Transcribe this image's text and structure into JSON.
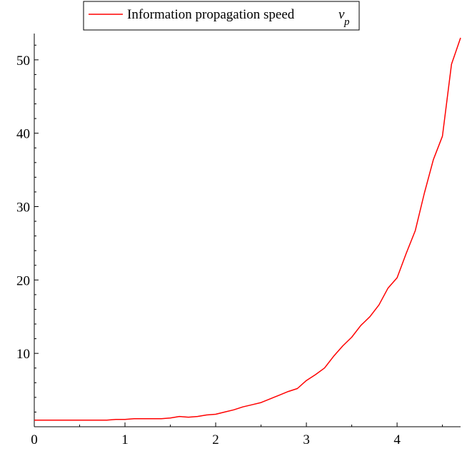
{
  "chart_data": {
    "type": "line",
    "title": "",
    "xlabel": "",
    "ylabel": "",
    "xlim": [
      0,
      4.7
    ],
    "ylim": [
      0,
      53
    ],
    "x_ticks": [
      0,
      1,
      2,
      3,
      4
    ],
    "y_ticks": [
      10,
      20,
      30,
      40,
      50
    ],
    "x_tick_labels": [
      "0",
      "1",
      "2",
      "3",
      "4"
    ],
    "y_tick_labels": [
      "10",
      "20",
      "30",
      "40",
      "50"
    ],
    "grid": false,
    "legend": {
      "placement": "top",
      "entries": [
        {
          "text": "Information propagation speed",
          "symbol": "v",
          "subscript": "p"
        }
      ]
    },
    "series": [
      {
        "name": "Information propagation speed v_p",
        "color": "#ff0000",
        "x": [
          0,
          0.2,
          0.4,
          0.6,
          0.8,
          0.9,
          1.0,
          1.1,
          1.2,
          1.3,
          1.4,
          1.5,
          1.6,
          1.7,
          1.8,
          1.9,
          2.0,
          2.1,
          2.2,
          2.3,
          2.4,
          2.5,
          2.6,
          2.7,
          2.8,
          2.9,
          3.0,
          3.1,
          3.2,
          3.3,
          3.4,
          3.5,
          3.6,
          3.7,
          3.8,
          3.9,
          4.0,
          4.1,
          4.2,
          4.3,
          4.4,
          4.5,
          4.6,
          4.7
        ],
        "y": [
          0.9,
          0.9,
          0.9,
          0.9,
          0.9,
          1.0,
          1.0,
          1.1,
          1.1,
          1.1,
          1.1,
          1.2,
          1.4,
          1.3,
          1.4,
          1.6,
          1.7,
          2.0,
          2.3,
          2.7,
          3.0,
          3.3,
          3.8,
          4.3,
          4.8,
          5.2,
          6.3,
          7.1,
          8.0,
          9.6,
          11.0,
          12.2,
          13.8,
          15.0,
          16.6,
          18.9,
          20.3,
          23.6,
          26.7,
          31.8,
          36.4,
          39.6,
          49.4,
          53.0
        ]
      }
    ]
  }
}
